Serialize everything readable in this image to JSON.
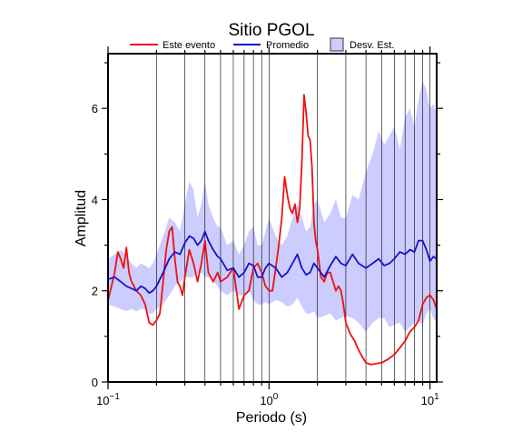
{
  "chart_data": {
    "type": "line",
    "title": "Sitio PGOL",
    "xlabel": "Periodo (s)",
    "ylabel": "Amplitud",
    "x_scale": "log",
    "xlim": [
      0.1,
      11
    ],
    "ylim": [
      0,
      7.2
    ],
    "grid": "vertical-log",
    "legend_position": "top",
    "x_ticks": [
      {
        "value": 0.1,
        "base": "10",
        "exp": "−1"
      },
      {
        "value": 1,
        "label": "10",
        "suffix": "0"
      },
      {
        "value": 10,
        "label": "10",
        "suffix": "1"
      }
    ],
    "y_ticks": [
      0,
      2,
      4,
      6
    ],
    "series": [
      {
        "name": "Este evento",
        "color": "#ee1111",
        "x": [
          0.1,
          0.105,
          0.11,
          0.115,
          0.12,
          0.125,
          0.13,
          0.135,
          0.14,
          0.145,
          0.15,
          0.16,
          0.17,
          0.18,
          0.19,
          0.2,
          0.21,
          0.22,
          0.23,
          0.24,
          0.25,
          0.26,
          0.27,
          0.28,
          0.29,
          0.3,
          0.32,
          0.34,
          0.36,
          0.38,
          0.4,
          0.42,
          0.45,
          0.48,
          0.5,
          0.55,
          0.6,
          0.65,
          0.7,
          0.75,
          0.8,
          0.85,
          0.9,
          0.95,
          1.0,
          1.05,
          1.1,
          1.15,
          1.2,
          1.25,
          1.3,
          1.35,
          1.4,
          1.45,
          1.5,
          1.55,
          1.6,
          1.65,
          1.7,
          1.75,
          1.8,
          1.85,
          1.9,
          1.95,
          2.0,
          2.1,
          2.2,
          2.3,
          2.4,
          2.5,
          2.6,
          2.7,
          2.8,
          2.9,
          3.0,
          3.2,
          3.4,
          3.6,
          3.8,
          4.0,
          4.3,
          4.6,
          5.0,
          5.5,
          6.0,
          6.5,
          7.0,
          7.5,
          8.0,
          8.5,
          9.0,
          9.5,
          10.0,
          10.5,
          11.0
        ],
        "y": [
          1.8,
          2.1,
          2.4,
          2.85,
          2.7,
          2.5,
          2.95,
          2.4,
          2.2,
          2.1,
          2.0,
          1.9,
          1.7,
          1.3,
          1.25,
          1.35,
          1.5,
          2.2,
          2.9,
          3.3,
          3.4,
          2.7,
          2.2,
          2.1,
          1.9,
          2.3,
          2.9,
          2.6,
          2.2,
          2.6,
          3.1,
          2.4,
          2.2,
          2.4,
          2.2,
          2.3,
          2.5,
          1.6,
          1.9,
          2.0,
          2.5,
          2.6,
          2.4,
          2.1,
          2.0,
          2.0,
          2.5,
          3.0,
          3.6,
          4.5,
          4.1,
          3.8,
          3.7,
          3.9,
          3.5,
          3.8,
          4.8,
          6.3,
          5.9,
          5.4,
          5.3,
          4.7,
          3.5,
          3.1,
          2.9,
          2.3,
          2.2,
          2.4,
          2.4,
          2.2,
          2.0,
          2.1,
          2.0,
          1.7,
          1.3,
          1.05,
          0.9,
          0.7,
          0.55,
          0.42,
          0.38,
          0.4,
          0.42,
          0.5,
          0.6,
          0.75,
          0.9,
          1.1,
          1.2,
          1.35,
          1.7,
          1.85,
          1.9,
          1.8,
          1.6
        ]
      },
      {
        "name": "Promedio",
        "color": "#1414c8",
        "x": [
          0.1,
          0.11,
          0.12,
          0.13,
          0.14,
          0.15,
          0.16,
          0.17,
          0.18,
          0.19,
          0.2,
          0.22,
          0.24,
          0.26,
          0.28,
          0.3,
          0.32,
          0.34,
          0.36,
          0.38,
          0.4,
          0.42,
          0.45,
          0.48,
          0.5,
          0.55,
          0.6,
          0.65,
          0.7,
          0.75,
          0.8,
          0.85,
          0.9,
          0.95,
          1.0,
          1.1,
          1.2,
          1.3,
          1.4,
          1.5,
          1.6,
          1.7,
          1.8,
          1.9,
          2.0,
          2.2,
          2.4,
          2.6,
          2.8,
          3.0,
          3.3,
          3.6,
          4.0,
          4.4,
          4.8,
          5.2,
          5.6,
          6.0,
          6.5,
          7.0,
          7.5,
          8.0,
          8.5,
          9.0,
          9.5,
          10.0,
          10.5,
          11.0
        ],
        "y": [
          2.25,
          2.3,
          2.2,
          2.1,
          2.05,
          2.0,
          2.1,
          2.05,
          1.95,
          2.0,
          2.1,
          2.4,
          2.7,
          2.85,
          2.8,
          3.05,
          3.2,
          3.15,
          3.0,
          3.1,
          3.3,
          3.1,
          2.9,
          2.75,
          2.7,
          2.45,
          2.5,
          2.3,
          2.4,
          2.6,
          2.55,
          2.3,
          2.3,
          2.5,
          2.6,
          2.5,
          2.3,
          2.4,
          2.6,
          2.8,
          2.5,
          2.35,
          2.4,
          2.6,
          2.5,
          2.3,
          2.55,
          2.75,
          2.6,
          2.55,
          2.8,
          2.6,
          2.5,
          2.6,
          2.7,
          2.55,
          2.6,
          2.7,
          2.85,
          2.8,
          2.9,
          2.85,
          3.1,
          3.1,
          2.9,
          2.65,
          2.75,
          2.7
        ]
      }
    ],
    "band": {
      "name": "Desv. Est.",
      "fill": "#ccccff",
      "stroke": "#333333",
      "x": [
        0.1,
        0.11,
        0.12,
        0.13,
        0.14,
        0.15,
        0.16,
        0.17,
        0.18,
        0.19,
        0.2,
        0.22,
        0.24,
        0.26,
        0.28,
        0.3,
        0.32,
        0.34,
        0.36,
        0.38,
        0.4,
        0.42,
        0.45,
        0.48,
        0.5,
        0.55,
        0.6,
        0.65,
        0.7,
        0.75,
        0.8,
        0.85,
        0.9,
        0.95,
        1.0,
        1.1,
        1.2,
        1.3,
        1.4,
        1.5,
        1.6,
        1.7,
        1.8,
        1.9,
        2.0,
        2.2,
        2.4,
        2.6,
        2.8,
        3.0,
        3.3,
        3.6,
        4.0,
        4.4,
        4.8,
        5.2,
        5.6,
        6.0,
        6.5,
        7.0,
        7.5,
        8.0,
        8.5,
        9.0,
        9.5,
        10.0,
        10.5,
        11.0
      ],
      "upper": [
        2.7,
        2.8,
        2.9,
        2.75,
        2.6,
        2.5,
        2.6,
        2.55,
        2.5,
        2.6,
        2.8,
        3.2,
        3.6,
        3.5,
        3.3,
        3.9,
        4.4,
        4.2,
        3.6,
        3.9,
        4.4,
        3.9,
        3.6,
        3.4,
        3.4,
        3.0,
        3.1,
        2.8,
        3.0,
        3.3,
        3.4,
        3.0,
        3.0,
        3.3,
        3.6,
        3.2,
        3.0,
        3.2,
        3.6,
        3.9,
        3.6,
        3.3,
        3.4,
        3.9,
        4.0,
        3.5,
        3.7,
        4.0,
        3.6,
        3.6,
        4.1,
        4.0,
        4.6,
        5.0,
        5.5,
        5.2,
        5.4,
        5.6,
        5.1,
        5.8,
        6.0,
        5.6,
        6.2,
        6.6,
        6.4,
        6.0,
        6.1,
        5.9
      ],
      "lower": [
        1.7,
        1.65,
        1.6,
        1.55,
        1.6,
        1.55,
        1.6,
        1.6,
        1.5,
        1.5,
        1.6,
        1.7,
        1.9,
        2.1,
        2.2,
        2.3,
        2.3,
        2.3,
        2.4,
        2.4,
        2.3,
        2.3,
        2.2,
        2.1,
        2.0,
        1.9,
        2.0,
        1.9,
        1.9,
        2.0,
        1.8,
        1.7,
        1.7,
        1.75,
        1.7,
        1.8,
        1.75,
        1.65,
        1.7,
        1.85,
        1.65,
        1.5,
        1.5,
        1.55,
        1.4,
        1.45,
        1.5,
        1.35,
        1.4,
        1.45,
        1.4,
        1.3,
        1.1,
        1.3,
        1.4,
        1.4,
        1.2,
        1.25,
        1.3,
        1.1,
        1.2,
        1.3,
        1.35,
        1.25,
        1.5,
        1.6,
        1.4,
        1.3
      ]
    }
  }
}
